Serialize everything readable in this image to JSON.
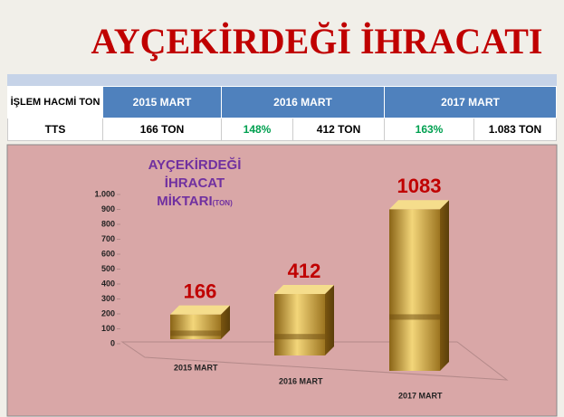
{
  "title": "AYÇEKİRDEĞİ İHRACATI",
  "table": {
    "header": [
      "İŞLEM HACMİ TON",
      "2015 MART",
      "2016 MART",
      "2017 MART"
    ],
    "rows": [
      [
        "TTS",
        "166 TON",
        "148%",
        "412 TON",
        "163%",
        "1.083 TON"
      ]
    ]
  },
  "chart_data": {
    "type": "bar3d",
    "title": [
      "AYÇEKİRDEĞİ",
      "İHRACAT",
      "MİKTARI"
    ],
    "title_unit": "(TON)",
    "categories": [
      "2015 MART",
      "2016 MART",
      "2017 MART"
    ],
    "values": [
      166,
      412,
      1083
    ],
    "color": "#d4a93c",
    "ylim": [
      0,
      1000
    ],
    "yticks": [
      0,
      100,
      200,
      300,
      400,
      500,
      600,
      700,
      800,
      900,
      {
        "value": 1000,
        "label": "1.000"
      }
    ]
  }
}
